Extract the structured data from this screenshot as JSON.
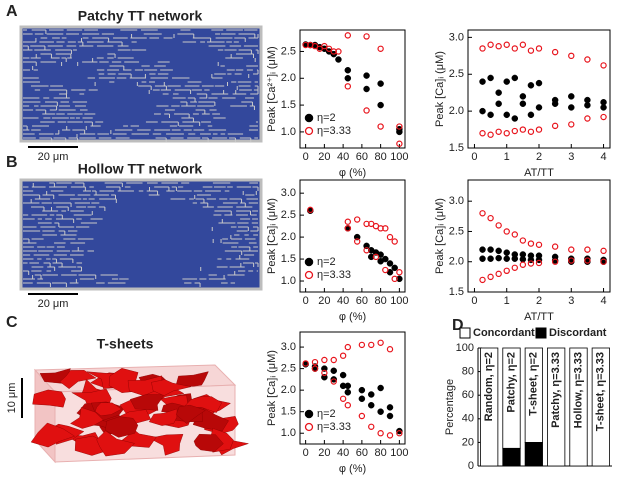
{
  "figure": {
    "panels": [
      {
        "letter": "A",
        "title": "Patchy TT network",
        "scale_bar": "20 μm"
      },
      {
        "letter": "B",
        "title": "Hollow TT network",
        "scale_bar": "20 μm"
      },
      {
        "letter": "C",
        "title": "T-sheets",
        "scale_bar": "10 μm"
      }
    ]
  },
  "chart_data": [
    {
      "type": "scatter",
      "x_label": "φ (%)",
      "y_label": "Peak [Ca²⁺]ᵢ (μM)",
      "xlim": [
        -6,
        106
      ],
      "xticks": [
        0,
        20,
        40,
        60,
        80,
        100
      ],
      "ylim": [
        0.7,
        2.9
      ],
      "yticks": [
        {
          "value": 1,
          "label": "1.0"
        },
        1.5,
        {
          "value": 2,
          "label": "2.0"
        },
        2.5
      ],
      "legend": "lower left",
      "series": [
        {
          "name": "η=2",
          "color": "#000000",
          "marker": "filled",
          "x": [
            0,
            5,
            10,
            15,
            20,
            25,
            30,
            35,
            45,
            45,
            65,
            65,
            80,
            80,
            100,
            100
          ],
          "values": [
            2.63,
            2.62,
            2.62,
            2.58,
            2.55,
            2.5,
            2.45,
            2.35,
            2.15,
            2.0,
            2.05,
            1.8,
            1.9,
            1.5,
            1.05,
            1.0
          ]
        },
        {
          "name": "η=3.33",
          "color": "#e8141c",
          "marker": "open",
          "x": [
            0,
            5,
            10,
            15,
            20,
            25,
            30,
            35,
            45,
            45,
            65,
            65,
            80,
            80,
            100,
            100
          ],
          "values": [
            2.62,
            2.62,
            2.6,
            2.55,
            2.6,
            2.55,
            2.5,
            2.5,
            2.8,
            1.85,
            2.78,
            1.4,
            2.55,
            1.1,
            1.1,
            0.78
          ]
        }
      ]
    },
    {
      "type": "scatter",
      "x_label": "AT/TT",
      "y_label": "Peak [Ca]ᵢ (μM)",
      "xlim": [
        -0.2,
        4.2
      ],
      "xticks": [
        0,
        1,
        2,
        3,
        4
      ],
      "ylim": [
        1.5,
        3.1
      ],
      "yticks": [
        1.5,
        {
          "value": 2,
          "label": "2.0"
        },
        2.5,
        {
          "value": 3,
          "label": "3.0"
        }
      ],
      "series": [
        {
          "color": "#000000",
          "marker": "filled",
          "x": [
            0.25,
            0.5,
            0.75,
            1,
            1.25,
            1.5,
            1.75,
            2,
            2.5,
            3,
            3.5,
            4,
            0.25,
            0.5,
            0.75,
            1,
            1.25,
            1.5,
            1.75,
            2,
            2.5,
            3,
            3.5,
            4
          ],
          "values": [
            2.4,
            2.45,
            2.25,
            2.4,
            2.45,
            2.2,
            2.35,
            2.38,
            2.15,
            2.2,
            2.15,
            2.12,
            2.0,
            1.95,
            2.1,
            1.95,
            1.9,
            2.1,
            1.95,
            2.05,
            2.1,
            2.05,
            2.08,
            2.05
          ]
        },
        {
          "color": "#e8141c",
          "marker": "open",
          "x": [
            0.25,
            0.5,
            0.75,
            1,
            1.25,
            1.5,
            1.75,
            2,
            2.5,
            3,
            3.5,
            4,
            0.25,
            0.5,
            0.75,
            1,
            1.25,
            1.5,
            1.75,
            2,
            2.5,
            3,
            3.5,
            4
          ],
          "values": [
            2.85,
            2.9,
            2.88,
            2.9,
            2.85,
            2.9,
            2.82,
            2.85,
            2.8,
            2.75,
            2.7,
            2.62,
            1.7,
            1.68,
            1.72,
            1.7,
            1.73,
            1.75,
            1.72,
            1.75,
            1.8,
            1.82,
            1.9,
            1.92
          ]
        }
      ]
    },
    {
      "type": "scatter",
      "x_label": "φ (%)",
      "y_label": "Peak [Ca]ᵢ (μM)",
      "xlim": [
        -6,
        106
      ],
      "xticks": [
        0,
        20,
        40,
        60,
        80,
        100
      ],
      "ylim": [
        0.75,
        3.3
      ],
      "yticks": [
        {
          "value": 1,
          "label": "1.0"
        },
        1.5,
        {
          "value": 2,
          "label": "2.0"
        },
        2.5,
        {
          "value": 3,
          "label": "3.0"
        }
      ],
      "legend": "lower left",
      "series": [
        {
          "name": "η=2",
          "color": "#000000",
          "marker": "filled",
          "x": [
            5,
            45,
            55,
            65,
            70,
            70,
            75,
            80,
            80,
            85,
            90,
            90,
            95,
            100
          ],
          "values": [
            2.6,
            2.2,
            2.0,
            1.8,
            1.7,
            1.55,
            1.65,
            1.6,
            1.45,
            1.5,
            1.4,
            1.2,
            1.3,
            1.05
          ]
        },
        {
          "name": "η=3.33",
          "color": "#e8141c",
          "marker": "open",
          "x": [
            5,
            45,
            45,
            55,
            55,
            65,
            65,
            70,
            75,
            75,
            80,
            85,
            85,
            90,
            95,
            95,
            100
          ],
          "values": [
            2.62,
            2.35,
            2.2,
            2.4,
            1.9,
            2.3,
            1.7,
            2.3,
            2.25,
            1.55,
            2.2,
            2.2,
            1.25,
            2.0,
            1.9,
            1.05,
            1.2
          ]
        }
      ]
    },
    {
      "type": "scatter",
      "x_label": "AT/TT",
      "y_label": "Peak [Ca]ᵢ (μM)",
      "xlim": [
        -0.2,
        4.2
      ],
      "xticks": [
        0,
        1,
        2,
        3,
        4
      ],
      "ylim": [
        1.5,
        3.35
      ],
      "yticks": [
        1.5,
        {
          "value": 2,
          "label": "2.0"
        },
        2.5,
        {
          "value": 3,
          "label": "3.0"
        }
      ],
      "series": [
        {
          "color": "#000000",
          "marker": "filled",
          "x": [
            0.25,
            0.5,
            0.75,
            1,
            1.25,
            1.5,
            1.75,
            2,
            2.5,
            3,
            3.5,
            4,
            0.25,
            0.5,
            0.75,
            1,
            1.25,
            1.5,
            1.75,
            2,
            2.5,
            3,
            3.5,
            4
          ],
          "values": [
            2.2,
            2.2,
            2.18,
            2.15,
            2.12,
            2.12,
            2.1,
            2.1,
            2.08,
            2.05,
            2.05,
            2.03,
            2.05,
            2.05,
            2.06,
            2.05,
            2.05,
            2.04,
            2.03,
            2.03,
            2.02,
            2.0,
            2.0,
            2.0
          ]
        },
        {
          "color": "#e8141c",
          "marker": "open",
          "x": [
            0.25,
            0.5,
            0.75,
            1,
            1.25,
            1.5,
            1.75,
            2,
            2.5,
            3,
            3.5,
            4,
            0.25,
            0.5,
            0.75,
            1,
            1.25,
            1.5,
            1.75,
            2,
            2.5,
            3,
            3.5,
            4
          ],
          "values": [
            2.8,
            2.72,
            2.6,
            2.5,
            2.45,
            2.35,
            2.3,
            2.28,
            2.25,
            2.2,
            2.2,
            2.18,
            1.7,
            1.75,
            1.8,
            1.85,
            1.9,
            1.95,
            1.97,
            1.98,
            2.0,
            2.02,
            2.02,
            2.0
          ]
        }
      ]
    },
    {
      "type": "scatter",
      "x_label": "φ (%)",
      "y_label": "Peak [Ca]ᵢ (μM)",
      "xlim": [
        -6,
        106
      ],
      "xticks": [
        0,
        20,
        40,
        60,
        80,
        100
      ],
      "ylim": [
        0.75,
        3.35
      ],
      "yticks": [
        {
          "value": 1,
          "label": "1.0"
        },
        1.5,
        {
          "value": 2,
          "label": "2.0"
        },
        2.5,
        {
          "value": 3,
          "label": "3.0"
        }
      ],
      "legend": "lower left",
      "series": [
        {
          "name": "η=2",
          "color": "#000000",
          "marker": "filled",
          "x": [
            0,
            10,
            20,
            30,
            40,
            45,
            60,
            70,
            80,
            90,
            100,
            10,
            20,
            30,
            40,
            45,
            60,
            70,
            80,
            90
          ],
          "values": [
            2.6,
            2.55,
            2.5,
            2.45,
            2.35,
            2.1,
            2.0,
            1.9,
            2.05,
            1.6,
            1.05,
            2.5,
            2.3,
            2.25,
            2.1,
            1.95,
            1.8,
            1.65,
            1.5,
            1.4
          ]
        },
        {
          "name": "η=3.33",
          "color": "#e8141c",
          "marker": "open",
          "x": [
            0,
            10,
            20,
            30,
            40,
            45,
            60,
            70,
            80,
            90,
            100,
            10,
            20,
            30,
            40,
            45,
            60,
            70,
            80,
            90
          ],
          "values": [
            2.62,
            2.65,
            2.7,
            2.7,
            2.8,
            3.0,
            3.05,
            3.05,
            3.1,
            2.95,
            1.0,
            2.5,
            2.4,
            2.2,
            1.8,
            1.65,
            1.4,
            1.15,
            1.0,
            0.95
          ]
        }
      ]
    },
    {
      "type": "bar",
      "panel": "D",
      "y_label": "Percentage",
      "stacked": true,
      "legend": "top",
      "categories": [
        "Random, η=2",
        "Patchy, η=2",
        "T-sheet, η=2",
        "Patchy, η=3.33",
        "Hollow, η=3.33",
        "T-sheet, η=3.33"
      ],
      "ylim": [
        0,
        100
      ],
      "yticks": [
        0,
        20,
        40,
        60,
        80,
        100
      ],
      "series": [
        {
          "name": "Concordant",
          "color": "#ffffff",
          "values": [
            100,
            85,
            80,
            100,
            100,
            100
          ]
        },
        {
          "name": "Discordant",
          "color": "#000000",
          "values": [
            0,
            15,
            20,
            0,
            0,
            0
          ]
        }
      ]
    }
  ]
}
